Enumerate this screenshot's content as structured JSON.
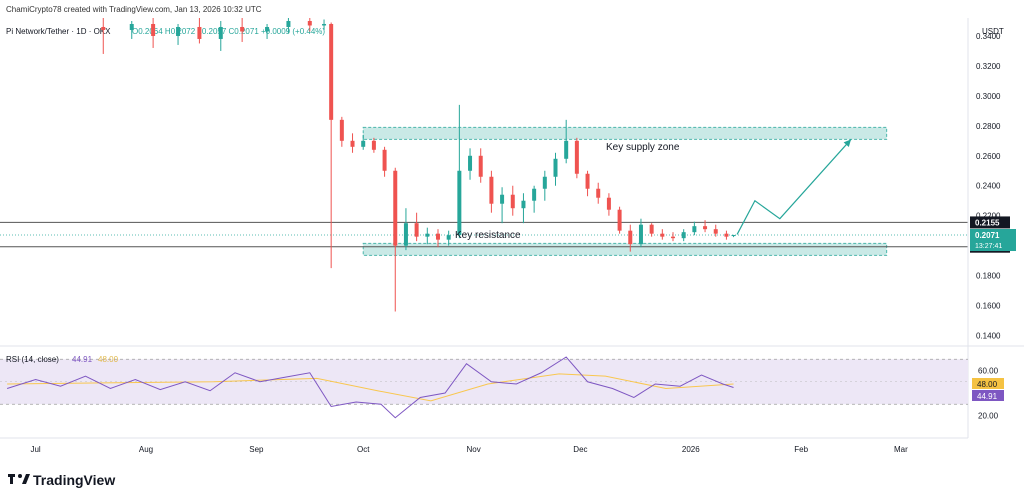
{
  "header": {
    "credit": "ChamiCrypto78 created with TradingView.com, Jan 13, 2026 10:32 UTC",
    "symbol": "Pi Network/Tether · 1D · OKX",
    "ohlc": "O0.2064 H0.2072 L0.2057 C0.2071 +0.0009 (+0.44%)"
  },
  "price_axis": {
    "currency": "USDT",
    "ticks": [
      "0.3400",
      "0.3200",
      "0.3000",
      "0.2800",
      "0.2600",
      "0.2400",
      "0.2200",
      "0.1800",
      "0.1600",
      "0.1400"
    ],
    "level_labels": [
      "0.2155",
      "0.1993"
    ],
    "last_price": "0.2071",
    "countdown": "13:27:41"
  },
  "annotations": {
    "supply_zone": "Key supply zone",
    "resistance": "Key resistance"
  },
  "rsi": {
    "title": "RSI (14, close)",
    "value": "44.91",
    "ma_value": "48.00",
    "ticks": [
      "60.00",
      "40.00",
      "20.00"
    ]
  },
  "time_axis": [
    "Jul",
    "Aug",
    "Sep",
    "Oct",
    "Nov",
    "Dec",
    "2026",
    "Feb",
    "Mar"
  ],
  "brand": "TradingView",
  "colors": {
    "up": "#26a69a",
    "down": "#ef5350",
    "zone_fill": "#b2dfdb",
    "rsi_line": "#7e57c2",
    "rsi_ma": "#f9c74f",
    "rsi_band": "#ede7f6"
  },
  "chart_data": {
    "type": "candlestick",
    "title": "Pi Network/Tether · 1D · OKX",
    "y_unit": "USDT",
    "ylim": [
      0.135,
      0.352
    ],
    "x_start": "2025-06-21",
    "x_end": "2026-03-19",
    "last_price": 0.2071,
    "horizontal_levels": [
      0.2155,
      0.1993
    ],
    "zones": [
      {
        "label": "Key supply zone",
        "low": 0.271,
        "high": 0.279,
        "x_from": "2025-10-01",
        "x_to": "2026-02-25"
      },
      {
        "label": "",
        "low": 0.1935,
        "high": 0.2015,
        "x_from": "2025-10-01",
        "x_to": "2026-02-25"
      }
    ],
    "projection": [
      {
        "x": "2026-01-14",
        "y": 0.2075
      },
      {
        "x": "2026-01-19",
        "y": 0.23
      },
      {
        "x": "2026-01-26",
        "y": 0.218
      },
      {
        "x": "2026-02-15",
        "y": 0.271
      }
    ],
    "candles": [
      {
        "x": "2025-07-20",
        "o": 0.346,
        "h": 0.352,
        "l": 0.328,
        "c": 0.344
      },
      {
        "x": "2025-07-28",
        "o": 0.344,
        "h": 0.35,
        "l": 0.338,
        "c": 0.348
      },
      {
        "x": "2025-08-03",
        "o": 0.348,
        "h": 0.352,
        "l": 0.332,
        "c": 0.34
      },
      {
        "x": "2025-08-10",
        "o": 0.34,
        "h": 0.348,
        "l": 0.334,
        "c": 0.346
      },
      {
        "x": "2025-08-16",
        "o": 0.346,
        "h": 0.352,
        "l": 0.335,
        "c": 0.338
      },
      {
        "x": "2025-08-22",
        "o": 0.338,
        "h": 0.35,
        "l": 0.33,
        "c": 0.346
      },
      {
        "x": "2025-08-28",
        "o": 0.346,
        "h": 0.352,
        "l": 0.336,
        "c": 0.343
      },
      {
        "x": "2025-09-04",
        "o": 0.343,
        "h": 0.348,
        "l": 0.338,
        "c": 0.346
      },
      {
        "x": "2025-09-10",
        "o": 0.346,
        "h": 0.352,
        "l": 0.342,
        "c": 0.35
      },
      {
        "x": "2025-09-16",
        "o": 0.35,
        "h": 0.352,
        "l": 0.343,
        "c": 0.347
      },
      {
        "x": "2025-09-20",
        "o": 0.347,
        "h": 0.351,
        "l": 0.344,
        "c": 0.348
      },
      {
        "x": "2025-09-22",
        "o": 0.348,
        "h": 0.349,
        "l": 0.185,
        "c": 0.284
      },
      {
        "x": "2025-09-25",
        "o": 0.284,
        "h": 0.286,
        "l": 0.266,
        "c": 0.27
      },
      {
        "x": "2025-09-28",
        "o": 0.27,
        "h": 0.275,
        "l": 0.262,
        "c": 0.266
      },
      {
        "x": "2025-10-01",
        "o": 0.266,
        "h": 0.274,
        "l": 0.264,
        "c": 0.27
      },
      {
        "x": "2025-10-04",
        "o": 0.27,
        "h": 0.272,
        "l": 0.262,
        "c": 0.264
      },
      {
        "x": "2025-10-07",
        "o": 0.264,
        "h": 0.266,
        "l": 0.246,
        "c": 0.25
      },
      {
        "x": "2025-10-10",
        "o": 0.25,
        "h": 0.252,
        "l": 0.156,
        "c": 0.2
      },
      {
        "x": "2025-10-13",
        "o": 0.2,
        "h": 0.225,
        "l": 0.197,
        "c": 0.215
      },
      {
        "x": "2025-10-16",
        "o": 0.215,
        "h": 0.222,
        "l": 0.203,
        "c": 0.206
      },
      {
        "x": "2025-10-19",
        "o": 0.206,
        "h": 0.212,
        "l": 0.201,
        "c": 0.208
      },
      {
        "x": "2025-10-22",
        "o": 0.208,
        "h": 0.211,
        "l": 0.199,
        "c": 0.204
      },
      {
        "x": "2025-10-25",
        "o": 0.204,
        "h": 0.21,
        "l": 0.2,
        "c": 0.207
      },
      {
        "x": "2025-10-28",
        "o": 0.207,
        "h": 0.294,
        "l": 0.205,
        "c": 0.25
      },
      {
        "x": "2025-10-31",
        "o": 0.25,
        "h": 0.265,
        "l": 0.244,
        "c": 0.26
      },
      {
        "x": "2025-11-03",
        "o": 0.26,
        "h": 0.265,
        "l": 0.242,
        "c": 0.246
      },
      {
        "x": "2025-11-06",
        "o": 0.246,
        "h": 0.25,
        "l": 0.222,
        "c": 0.228
      },
      {
        "x": "2025-11-09",
        "o": 0.228,
        "h": 0.239,
        "l": 0.215,
        "c": 0.234
      },
      {
        "x": "2025-11-12",
        "o": 0.234,
        "h": 0.24,
        "l": 0.22,
        "c": 0.225
      },
      {
        "x": "2025-11-15",
        "o": 0.225,
        "h": 0.235,
        "l": 0.215,
        "c": 0.23
      },
      {
        "x": "2025-11-18",
        "o": 0.23,
        "h": 0.24,
        "l": 0.222,
        "c": 0.238
      },
      {
        "x": "2025-11-21",
        "o": 0.238,
        "h": 0.25,
        "l": 0.23,
        "c": 0.246
      },
      {
        "x": "2025-11-24",
        "o": 0.246,
        "h": 0.262,
        "l": 0.24,
        "c": 0.258
      },
      {
        "x": "2025-11-27",
        "o": 0.258,
        "h": 0.284,
        "l": 0.255,
        "c": 0.27
      },
      {
        "x": "2025-11-30",
        "o": 0.27,
        "h": 0.272,
        "l": 0.245,
        "c": 0.248
      },
      {
        "x": "2025-12-03",
        "o": 0.248,
        "h": 0.25,
        "l": 0.233,
        "c": 0.238
      },
      {
        "x": "2025-12-06",
        "o": 0.238,
        "h": 0.242,
        "l": 0.228,
        "c": 0.232
      },
      {
        "x": "2025-12-09",
        "o": 0.232,
        "h": 0.235,
        "l": 0.22,
        "c": 0.224
      },
      {
        "x": "2025-12-12",
        "o": 0.224,
        "h": 0.226,
        "l": 0.208,
        "c": 0.21
      },
      {
        "x": "2025-12-15",
        "o": 0.21,
        "h": 0.214,
        "l": 0.196,
        "c": 0.201
      },
      {
        "x": "2025-12-18",
        "o": 0.201,
        "h": 0.218,
        "l": 0.199,
        "c": 0.214
      },
      {
        "x": "2025-12-21",
        "o": 0.214,
        "h": 0.215,
        "l": 0.206,
        "c": 0.208
      },
      {
        "x": "2025-12-24",
        "o": 0.208,
        "h": 0.211,
        "l": 0.204,
        "c": 0.206
      },
      {
        "x": "2025-12-27",
        "o": 0.206,
        "h": 0.209,
        "l": 0.203,
        "c": 0.205
      },
      {
        "x": "2025-12-30",
        "o": 0.205,
        "h": 0.211,
        "l": 0.203,
        "c": 0.209
      },
      {
        "x": "2026-01-02",
        "o": 0.209,
        "h": 0.216,
        "l": 0.207,
        "c": 0.213
      },
      {
        "x": "2026-01-05",
        "o": 0.213,
        "h": 0.217,
        "l": 0.209,
        "c": 0.211
      },
      {
        "x": "2026-01-08",
        "o": 0.211,
        "h": 0.214,
        "l": 0.206,
        "c": 0.208
      },
      {
        "x": "2026-01-11",
        "o": 0.208,
        "h": 0.21,
        "l": 0.204,
        "c": 0.206
      },
      {
        "x": "2026-01-13",
        "o": 0.2064,
        "h": 0.2072,
        "l": 0.2057,
        "c": 0.2071
      }
    ],
    "rsi": {
      "ylim": [
        0,
        80
      ],
      "overbought": 70,
      "oversold": 30,
      "series": [
        {
          "x": "2025-06-23",
          "v": 44
        },
        {
          "x": "2025-07-01",
          "v": 52
        },
        {
          "x": "2025-07-08",
          "v": 46
        },
        {
          "x": "2025-07-15",
          "v": 55
        },
        {
          "x": "2025-07-22",
          "v": 44
        },
        {
          "x": "2025-07-29",
          "v": 52
        },
        {
          "x": "2025-08-05",
          "v": 43
        },
        {
          "x": "2025-08-12",
          "v": 50
        },
        {
          "x": "2025-08-19",
          "v": 42
        },
        {
          "x": "2025-08-26",
          "v": 58
        },
        {
          "x": "2025-09-02",
          "v": 50
        },
        {
          "x": "2025-09-09",
          "v": 54
        },
        {
          "x": "2025-09-16",
          "v": 58
        },
        {
          "x": "2025-09-22",
          "v": 28
        },
        {
          "x": "2025-09-29",
          "v": 32
        },
        {
          "x": "2025-10-06",
          "v": 30
        },
        {
          "x": "2025-10-10",
          "v": 18
        },
        {
          "x": "2025-10-17",
          "v": 36
        },
        {
          "x": "2025-10-24",
          "v": 40
        },
        {
          "x": "2025-10-30",
          "v": 66
        },
        {
          "x": "2025-11-06",
          "v": 50
        },
        {
          "x": "2025-11-13",
          "v": 48
        },
        {
          "x": "2025-11-20",
          "v": 58
        },
        {
          "x": "2025-11-27",
          "v": 72
        },
        {
          "x": "2025-12-03",
          "v": 50
        },
        {
          "x": "2025-12-10",
          "v": 44
        },
        {
          "x": "2025-12-16",
          "v": 36
        },
        {
          "x": "2025-12-22",
          "v": 48
        },
        {
          "x": "2025-12-29",
          "v": 46
        },
        {
          "x": "2026-01-04",
          "v": 56
        },
        {
          "x": "2026-01-10",
          "v": 48
        },
        {
          "x": "2026-01-13",
          "v": 44.91
        }
      ],
      "ma_series": [
        {
          "x": "2025-06-23",
          "v": 48
        },
        {
          "x": "2025-07-20",
          "v": 49
        },
        {
          "x": "2025-08-20",
          "v": 50
        },
        {
          "x": "2025-09-18",
          "v": 53
        },
        {
          "x": "2025-10-05",
          "v": 42
        },
        {
          "x": "2025-10-20",
          "v": 33
        },
        {
          "x": "2025-11-05",
          "v": 48
        },
        {
          "x": "2025-11-25",
          "v": 57
        },
        {
          "x": "2025-12-08",
          "v": 55
        },
        {
          "x": "2025-12-25",
          "v": 44
        },
        {
          "x": "2026-01-13",
          "v": 48
        }
      ]
    }
  }
}
